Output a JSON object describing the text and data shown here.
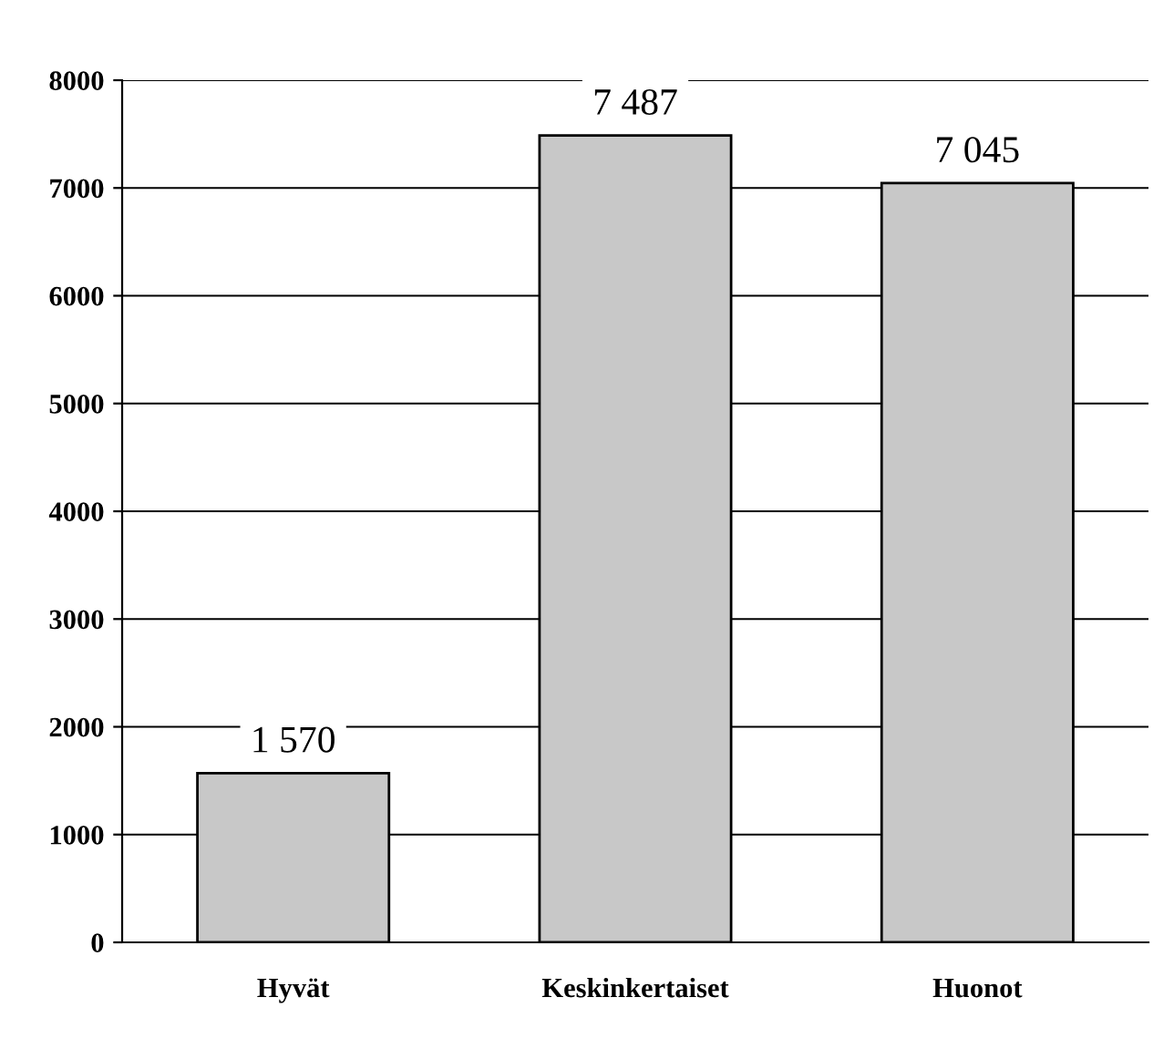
{
  "chart_data": {
    "type": "bar",
    "categories": [
      "Hyvät",
      "Keskinkertaiset",
      "Huonot"
    ],
    "values": [
      1570,
      7487,
      7045
    ],
    "value_labels": [
      "1 570",
      "7 487",
      "7 045"
    ],
    "color": "#c8c8c8",
    "ylim": [
      0,
      8000
    ],
    "yticks": [
      0,
      1000,
      2000,
      3000,
      4000,
      5000,
      6000,
      7000,
      8000
    ],
    "grid": "y"
  }
}
